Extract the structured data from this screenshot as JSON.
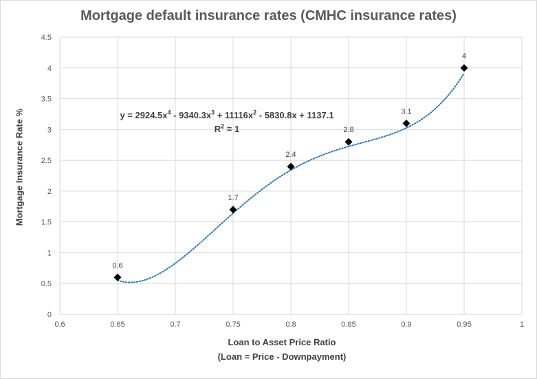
{
  "chart_data": {
    "type": "scatter",
    "title": "Mortgage default insurance rates (CMHC insurance rates)",
    "xlabel": "Loan to Asset Price Ratio",
    "xlabel_sub": "(Loan = Price - Downpayment)",
    "ylabel": "Mortgage Insurance Rate %",
    "xlim": [
      0.6,
      1
    ],
    "ylim": [
      0,
      4.5
    ],
    "x_ticks": [
      "0.6",
      "0.65",
      "0.7",
      "0.75",
      "0.8",
      "0.85",
      "0.9",
      "0.95",
      "1"
    ],
    "y_ticks": [
      "0",
      "0.5",
      "1",
      "1.5",
      "2",
      "2.5",
      "3",
      "3.5",
      "4",
      "4.5"
    ],
    "grid": true,
    "legend": "none",
    "points": [
      {
        "x": 0.65,
        "y": 0.6,
        "label": "0.6"
      },
      {
        "x": 0.75,
        "y": 1.7,
        "label": "1.7"
      },
      {
        "x": 0.8,
        "y": 2.4,
        "label": "2.4"
      },
      {
        "x": 0.85,
        "y": 2.8,
        "label": "2.8"
      },
      {
        "x": 0.9,
        "y": 3.1,
        "label": "3.1"
      },
      {
        "x": 0.95,
        "y": 4.0,
        "label": "4"
      }
    ],
    "trendline": {
      "type": "polynomial",
      "order": 4,
      "coefficients": [
        2924.5,
        -9340.3,
        11116,
        -5830.8,
        1137.1
      ],
      "equation_parts": {
        "a": "y = 2924.5x",
        "e1": "4",
        "b": " - 9340.3x",
        "e2": "3",
        "c": " + 11116x",
        "e3": "2",
        "d": " - 5830.8x + 1137.1"
      },
      "r2_prefix": "R",
      "r2_exp": "2",
      "r2_suffix": " = 1",
      "color": "#2e75b6"
    },
    "marker_color": "#000000",
    "grid_color": "#d9d9d9"
  }
}
